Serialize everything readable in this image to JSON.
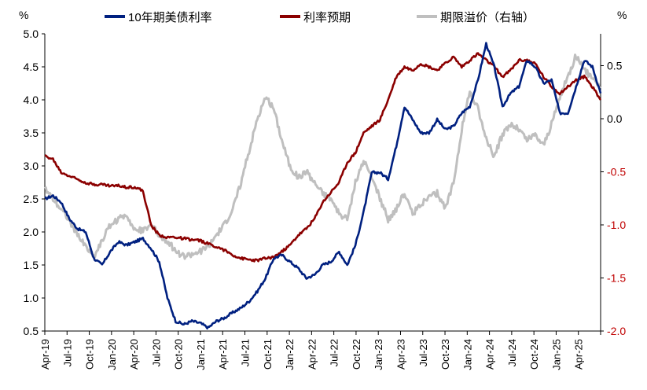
{
  "chart_data": {
    "type": "line",
    "left_axis_unit": "%",
    "right_axis_unit": "%",
    "left_axis": {
      "ylim": [
        0.5,
        5.0
      ],
      "ticks": [
        "0.5",
        "1.0",
        "1.5",
        "2.0",
        "2.5",
        "3.0",
        "3.5",
        "4.0",
        "4.5",
        "5.0"
      ]
    },
    "right_axis": {
      "ylim": [
        -2.0,
        0.8
      ],
      "ticks": [
        "-2.0",
        "-1.5",
        "-1.0",
        "-0.5",
        "0.0",
        "0.5"
      ],
      "negative_color": "#c00000",
      "positive_color": "#000000"
    },
    "x_ticks": [
      "Apr-19",
      "Jul-19",
      "Oct-19",
      "Jan-20",
      "Apr-20",
      "Jul-20",
      "Oct-20",
      "Jan-21",
      "Apr-21",
      "Jul-21",
      "Oct-21",
      "Jan-22",
      "Apr-22",
      "Jul-22",
      "Oct-22",
      "Jan-23",
      "Apr-23",
      "Jul-23",
      "Oct-23",
      "Jan-24",
      "Apr-24",
      "Jul-24",
      "Oct-24",
      "Jan-25",
      "Apr-25"
    ],
    "legend": [
      {
        "name": "10年期美债利率",
        "color": "#002080"
      },
      {
        "name": "利率预期",
        "color": "#8b0000"
      },
      {
        "name": "期限溢价（右轴）",
        "color": "#bfbfbf"
      }
    ],
    "series": [
      {
        "name": "10年期美债利率",
        "axis": "left",
        "color": "#002080",
        "values": [
          2.5,
          2.55,
          2.45,
          2.2,
          2.05,
          2.0,
          1.6,
          1.5,
          1.7,
          1.85,
          1.8,
          1.85,
          1.9,
          1.75,
          1.55,
          1.0,
          0.65,
          0.6,
          0.65,
          0.62,
          0.55,
          0.65,
          0.7,
          0.78,
          0.85,
          0.95,
          1.1,
          1.3,
          1.6,
          1.65,
          1.55,
          1.45,
          1.3,
          1.35,
          1.5,
          1.55,
          1.7,
          1.5,
          1.8,
          2.3,
          2.9,
          2.9,
          2.8,
          3.3,
          3.9,
          3.7,
          3.5,
          3.5,
          3.7,
          3.55,
          3.6,
          3.8,
          3.9,
          4.3,
          4.85,
          4.5,
          3.9,
          4.1,
          4.2,
          4.6,
          4.5,
          4.25,
          4.3,
          3.8,
          3.8,
          4.2,
          4.6,
          4.5,
          4.1
        ]
      },
      {
        "name": "利率预期",
        "axis": "left",
        "color": "#8b0000",
        "values": [
          3.15,
          3.1,
          2.9,
          2.85,
          2.8,
          2.75,
          2.72,
          2.72,
          2.7,
          2.7,
          2.68,
          2.68,
          2.62,
          2.1,
          1.95,
          1.92,
          1.92,
          1.9,
          1.88,
          1.87,
          1.82,
          1.78,
          1.72,
          1.65,
          1.6,
          1.58,
          1.57,
          1.6,
          1.62,
          1.7,
          1.8,
          1.95,
          2.05,
          2.2,
          2.45,
          2.6,
          2.75,
          3.05,
          3.2,
          3.5,
          3.6,
          3.7,
          4.0,
          4.35,
          4.5,
          4.45,
          4.55,
          4.5,
          4.45,
          4.55,
          4.65,
          4.5,
          4.6,
          4.7,
          4.6,
          4.5,
          4.35,
          4.45,
          4.6,
          4.6,
          4.55,
          4.35,
          4.2,
          4.1,
          4.2,
          4.3,
          4.35,
          4.2,
          4.0
        ]
      },
      {
        "name": "期限溢价（右轴）",
        "axis": "right",
        "color": "#bfbfbf",
        "values": [
          -0.65,
          -0.75,
          -0.85,
          -0.95,
          -1.1,
          -1.2,
          -1.3,
          -1.15,
          -1.0,
          -0.95,
          -0.9,
          -1.05,
          -1.05,
          -1.0,
          -1.1,
          -1.15,
          -1.25,
          -1.3,
          -1.28,
          -1.25,
          -1.2,
          -1.1,
          -1.0,
          -0.85,
          -0.6,
          -0.3,
          0.0,
          0.2,
          0.1,
          -0.2,
          -0.45,
          -0.55,
          -0.5,
          -0.6,
          -0.7,
          -0.75,
          -0.9,
          -0.95,
          -0.6,
          -0.4,
          -0.55,
          -0.75,
          -0.95,
          -0.85,
          -0.7,
          -0.9,
          -0.8,
          -0.75,
          -0.7,
          -0.85,
          -0.6,
          -0.1,
          0.25,
          0.1,
          -0.2,
          -0.35,
          -0.15,
          -0.05,
          -0.1,
          -0.2,
          -0.15,
          -0.25,
          -0.05,
          0.2,
          0.4,
          0.6,
          0.45,
          0.4,
          0.3
        ]
      }
    ]
  }
}
